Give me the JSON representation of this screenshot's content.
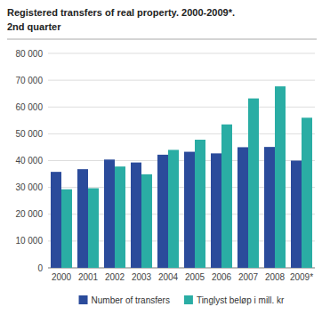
{
  "chart_data": {
    "type": "bar",
    "title": "Registered transfers of real property. 2000-2009*.",
    "subtitle": "2nd quarter",
    "categories": [
      "2000",
      "2001",
      "2002",
      "2003",
      "2004",
      "2005",
      "2006",
      "2007",
      "2008",
      "2009*"
    ],
    "series": [
      {
        "name": "Number of transfers",
        "color": "#2B4B9B",
        "values": [
          35800,
          36800,
          40400,
          39300,
          42200,
          43300,
          42700,
          45000,
          45100,
          40000
        ]
      },
      {
        "name": "Tinglyst beløp i mill. kr",
        "color": "#2AADA4",
        "values": [
          29300,
          29700,
          37800,
          34900,
          44000,
          47800,
          53500,
          63200,
          67700,
          56000
        ]
      }
    ],
    "ylim": [
      0,
      80000
    ],
    "yticks": [
      0,
      {
        "value": 10000,
        "label": "10 000"
      },
      {
        "value": 20000,
        "label": "20 000"
      },
      {
        "value": 30000,
        "label": "30 000"
      },
      {
        "value": 40000,
        "label": "40 000"
      },
      {
        "value": 50000,
        "label": "50 000"
      },
      {
        "value": 60000,
        "label": "60 000"
      },
      {
        "value": 70000,
        "label": "70 000"
      },
      {
        "value": 80000,
        "label": "80 000"
      }
    ],
    "grid": true,
    "legend": "bottom"
  }
}
